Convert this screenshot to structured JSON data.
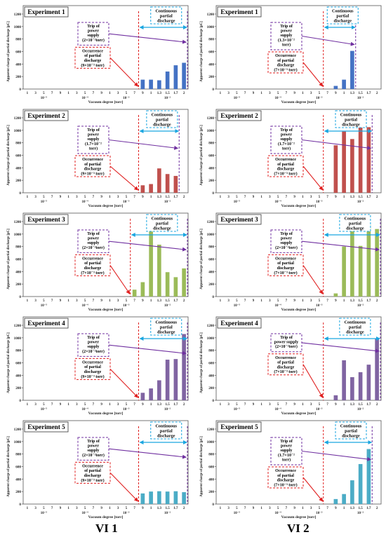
{
  "columns": [
    {
      "label": "VI 1"
    },
    {
      "label": "VI 2"
    }
  ],
  "axis_text": {
    "ylabel": "Apparent charge of partial discharge [pC]",
    "xlabel": "Vacuum degree [torr]",
    "x_ticks": [
      "1",
      "3",
      "5",
      "7",
      "9",
      "1",
      "3",
      "5",
      "7",
      "9",
      "1",
      "3",
      "5",
      "7",
      "9",
      "1",
      "1.3",
      "1.5",
      "1.7",
      "2"
    ],
    "decades": [
      "10⁻⁵",
      "10⁻⁴",
      "10⁻³",
      "10⁻²"
    ],
    "y_ticks": [
      "0",
      "200",
      "400",
      "600",
      "800",
      "1000",
      "1200"
    ]
  },
  "chart_data": [
    {
      "type": "bar",
      "panel": "vi1-exp1",
      "title": "Experiment 1",
      "color": "#4472c4",
      "ylim": [
        0,
        1200
      ],
      "categories": [
        "1",
        "3",
        "5",
        "7",
        "9",
        "1",
        "3",
        "5",
        "7",
        "9",
        "1",
        "3",
        "5",
        "7",
        "9",
        "1",
        "1.3",
        "1.5",
        "1.7",
        "2"
      ],
      "values": [
        0,
        0,
        0,
        0,
        0,
        0,
        0,
        0,
        0,
        0,
        0,
        0,
        0,
        0,
        150,
        150,
        140,
        280,
        380,
        420
      ],
      "occurrence_index": 14,
      "trip_index": 19,
      "continuous_label": [
        "Continuous",
        "partial",
        "discharge"
      ],
      "trip_label": [
        "Trip of",
        "power",
        "supply",
        "(2×10⁻²torr)"
      ],
      "occurrence_label": [
        "Occurrence",
        "of partial",
        "discharge",
        "(9×10⁻³ torr)"
      ]
    },
    {
      "type": "bar",
      "panel": "vi2-exp1",
      "title": "Experiment 1",
      "color": "#4472c4",
      "ylim": [
        0,
        1200
      ],
      "categories": [
        "1",
        "3",
        "5",
        "7",
        "9",
        "1",
        "3",
        "5",
        "7",
        "9",
        "1",
        "3",
        "5",
        "7",
        "9",
        "1",
        "1.3",
        "1.5",
        "1.7",
        "2"
      ],
      "values": [
        0,
        0,
        0,
        0,
        0,
        0,
        0,
        0,
        0,
        0,
        0,
        0,
        0,
        0,
        50,
        150,
        610,
        0,
        0,
        0
      ],
      "occurrence_index": 13,
      "trip_index": 16,
      "continuous_label": [
        "Continuous",
        "partial",
        "discharge"
      ],
      "trip_label": [
        "Trip of",
        "power",
        "supply",
        "(1.3×10⁻²",
        "torr)"
      ],
      "occurrence_label": [
        "Occurrence",
        "of partial",
        "discharge",
        "(7×10⁻³ torr)"
      ]
    },
    {
      "type": "bar",
      "panel": "vi1-exp2",
      "title": "Experiment 2",
      "color": "#c0504d",
      "ylim": [
        0,
        1200
      ],
      "categories": [
        "1",
        "3",
        "5",
        "7",
        "9",
        "1",
        "3",
        "5",
        "7",
        "9",
        "1",
        "3",
        "5",
        "7",
        "9",
        "1",
        "1.3",
        "1.5",
        "1.7",
        "2"
      ],
      "values": [
        0,
        0,
        0,
        0,
        0,
        0,
        0,
        0,
        0,
        0,
        0,
        0,
        0,
        0,
        120,
        140,
        390,
        300,
        270,
        0
      ],
      "occurrence_index": 14,
      "trip_index": 18,
      "continuous_label": [
        "Continuous",
        "partial",
        "discharge"
      ],
      "trip_label": [
        "Trip of",
        "power",
        "supply",
        "(1.7×10⁻²",
        "torr)"
      ],
      "occurrence_label": [
        "Occurrence",
        "of partial",
        "discharge",
        "(9×10⁻³ torr)"
      ]
    },
    {
      "type": "bar",
      "panel": "vi2-exp2",
      "title": "Experiment 2",
      "color": "#c0504d",
      "ylim": [
        0,
        1200
      ],
      "categories": [
        "1",
        "3",
        "5",
        "7",
        "9",
        "1",
        "3",
        "5",
        "7",
        "9",
        "1",
        "3",
        "5",
        "7",
        "9",
        "1",
        "1.3",
        "1.5",
        "1.7",
        "2"
      ],
      "values": [
        0,
        0,
        0,
        0,
        0,
        0,
        0,
        0,
        0,
        0,
        0,
        0,
        0,
        0,
        760,
        980,
        860,
        1170,
        1050,
        0
      ],
      "occurrence_index": 13,
      "trip_index": 18,
      "continuous_label": [
        "Continuous",
        "partial",
        "discharge"
      ],
      "trip_label": [
        "Trip of",
        "power",
        "supply",
        "(1.7×10⁻²",
        "torr)"
      ],
      "occurrence_label": [
        "Occurrence",
        "of partial",
        "discharge",
        "(7×10⁻³ torr)"
      ]
    },
    {
      "type": "bar",
      "panel": "vi1-exp3",
      "title": "Experiment 3",
      "color": "#9bbb59",
      "ylim": [
        0,
        1200
      ],
      "categories": [
        "1",
        "3",
        "5",
        "7",
        "9",
        "1",
        "3",
        "5",
        "7",
        "9",
        "1",
        "3",
        "5",
        "7",
        "9",
        "1",
        "1.3",
        "1.5",
        "1.7",
        "2"
      ],
      "values": [
        0,
        0,
        0,
        0,
        0,
        0,
        0,
        0,
        0,
        0,
        0,
        0,
        0,
        110,
        230,
        1040,
        830,
        390,
        310,
        450
      ],
      "occurrence_index": 13,
      "trip_index": 19,
      "continuous_label": [
        "Continuous",
        "partial",
        "discharge"
      ],
      "trip_label": [
        "Trip of",
        "power",
        "supply",
        "(2×10⁻²torr)"
      ],
      "occurrence_label": [
        "Occurrence",
        "of partial",
        "discharge",
        "(7×10⁻³ torr)"
      ]
    },
    {
      "type": "bar",
      "panel": "vi2-exp3",
      "title": "Experiment 3",
      "color": "#9bbb59",
      "ylim": [
        0,
        1200
      ],
      "categories": [
        "1",
        "3",
        "5",
        "7",
        "9",
        "1",
        "3",
        "5",
        "7",
        "9",
        "1",
        "3",
        "5",
        "7",
        "9",
        "1",
        "1.3",
        "1.5",
        "1.7",
        "2"
      ],
      "values": [
        0,
        0,
        0,
        0,
        0,
        0,
        0,
        0,
        0,
        0,
        0,
        0,
        0,
        0,
        50,
        800,
        1120,
        810,
        1150,
        1080
      ],
      "occurrence_index": 13,
      "trip_index": 19,
      "continuous_label": [
        "Continuous",
        "partial",
        "discharge"
      ],
      "trip_label": [
        "Trip of",
        "power",
        "supply",
        "(2×10⁻²torr)"
      ],
      "occurrence_label": [
        "Occurrence",
        "of partial",
        "discharge",
        "(7×10⁻³ torr)"
      ]
    },
    {
      "type": "bar",
      "panel": "vi1-exp4",
      "title": "Experiment 4",
      "color": "#8064a2",
      "ylim": [
        0,
        1200
      ],
      "categories": [
        "1",
        "3",
        "5",
        "7",
        "9",
        "1",
        "3",
        "5",
        "7",
        "9",
        "1",
        "3",
        "5",
        "7",
        "9",
        "1",
        "1.3",
        "1.5",
        "1.7",
        "2"
      ],
      "values": [
        0,
        0,
        0,
        0,
        0,
        0,
        0,
        0,
        0,
        0,
        0,
        0,
        0,
        0,
        120,
        190,
        320,
        650,
        660,
        1060
      ],
      "occurrence_index": 14,
      "trip_index": 19,
      "continuous_label": [
        "Continuous",
        "partial",
        "discharge"
      ],
      "trip_label": [
        "Trip of",
        "power",
        "supply",
        "(2×10⁻²torr)"
      ],
      "occurrence_label": [
        "Occurrence",
        "of partial",
        "discharge",
        "(9×10⁻³ torr)"
      ]
    },
    {
      "type": "bar",
      "panel": "vi2-exp4",
      "title": "Experiment 4",
      "color": "#8064a2",
      "ylim": [
        0,
        1200
      ],
      "categories": [
        "1",
        "3",
        "5",
        "7",
        "9",
        "1",
        "3",
        "5",
        "7",
        "9",
        "1",
        "3",
        "5",
        "7",
        "9",
        "1",
        "1.3",
        "1.5",
        "1.7",
        "2"
      ],
      "values": [
        0,
        0,
        0,
        0,
        0,
        0,
        0,
        0,
        0,
        0,
        0,
        0,
        0,
        0,
        80,
        640,
        370,
        450,
        570,
        990
      ],
      "occurrence_index": 13,
      "trip_index": 19,
      "continuous_label": [
        "Continuous",
        "partial",
        "discharge"
      ],
      "trip_label": [
        "Trip of",
        "power supply",
        "(2×10⁻²torr)"
      ],
      "occurrence_label": [
        "Occurrence",
        "of partial",
        "discharge",
        "(7×10⁻³ torr)"
      ]
    },
    {
      "type": "bar",
      "panel": "vi1-exp5",
      "title": "Experiment 5",
      "color": "#4bacc6",
      "ylim": [
        0,
        1200
      ],
      "categories": [
        "1",
        "3",
        "5",
        "7",
        "9",
        "1",
        "3",
        "5",
        "7",
        "9",
        "1",
        "3",
        "5",
        "7",
        "9",
        "1",
        "1.3",
        "1.5",
        "1.7",
        "2"
      ],
      "values": [
        0,
        0,
        0,
        0,
        0,
        0,
        0,
        0,
        0,
        0,
        0,
        0,
        0,
        0,
        170,
        200,
        205,
        200,
        205,
        190
      ],
      "occurrence_index": 14,
      "trip_index": 19,
      "continuous_label": [
        "Continuous",
        "partial",
        "discharge"
      ],
      "trip_label": [
        "Trip of",
        "power",
        "supply",
        "(2×10⁻²torr)"
      ],
      "occurrence_label": [
        "Occurrence",
        "of partial",
        "discharge",
        "(9×10⁻³ torr)"
      ]
    },
    {
      "type": "bar",
      "panel": "vi2-exp5",
      "title": "Experiment 5",
      "color": "#4bacc6",
      "ylim": [
        0,
        1200
      ],
      "categories": [
        "1",
        "3",
        "5",
        "7",
        "9",
        "1",
        "3",
        "5",
        "7",
        "9",
        "1",
        "3",
        "5",
        "7",
        "9",
        "1",
        "1.3",
        "1.5",
        "1.7",
        "2"
      ],
      "values": [
        0,
        0,
        0,
        0,
        0,
        0,
        0,
        0,
        0,
        0,
        0,
        0,
        0,
        0,
        80,
        160,
        380,
        640,
        880,
        0
      ],
      "occurrence_index": 13,
      "trip_index": 18,
      "continuous_label": [
        "Continuous",
        "partial",
        "discharge"
      ],
      "trip_label": [
        "Trip of",
        "power",
        "supply",
        "(1.7×10⁻²",
        "torr)"
      ],
      "occurrence_label": [
        "Occurrence",
        "of partial",
        "discharge",
        "(7×10⁻³ torr)"
      ]
    }
  ]
}
